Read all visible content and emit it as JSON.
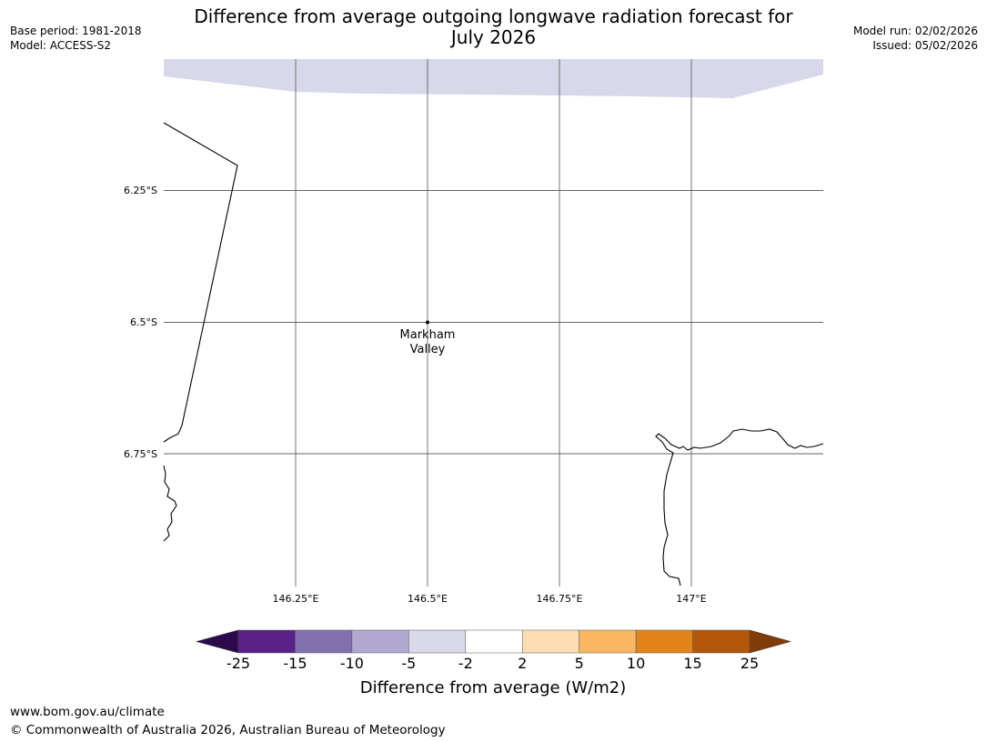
{
  "header": {
    "title": "Difference from average outgoing longwave radiation forecast for July 2026",
    "title_line1": "Difference from average outgoing longwave radiation forecast for",
    "title_line2": "July 2026",
    "base_period": "Base period: 1981-2018",
    "model": "Model: ACCESS-S2",
    "model_run": "Model run: 02/02/2026",
    "issued": "Issued: 05/02/2026"
  },
  "map": {
    "lon_ticks": [
      "146.25°E",
      "146.5°E",
      "146.75°E",
      "147°E"
    ],
    "lat_ticks": [
      "6.25°S",
      "6.5°S",
      "6.75°S"
    ],
    "place": {
      "name": "Markham Valley",
      "line1": "Markham",
      "line2": "Valley",
      "lon": 146.5,
      "lat": -6.5
    },
    "extent": {
      "lon_min": 146.0,
      "lon_max": 147.25,
      "lat_min": -7.0,
      "lat_max": -6.0
    },
    "shaded_band_category": "-5 to -2"
  },
  "colorbar": {
    "label": "Difference from average (W/m2)",
    "ticks": [
      "-25",
      "-15",
      "-10",
      "-5",
      "-2",
      "2",
      "5",
      "10",
      "15",
      "25"
    ],
    "colors": [
      "#2d0a4e",
      "#5a2188",
      "#8370ae",
      "#b1a8d0",
      "#d9d9ea",
      "#ffffff",
      "#fddeb2",
      "#fbb661",
      "#e2841a",
      "#b45608",
      "#7f3b08"
    ]
  },
  "footer": {
    "url": "www.bom.gov.au/climate",
    "copyright": "© Commonwealth of Australia 2026, Australian Bureau of Meteorology"
  }
}
